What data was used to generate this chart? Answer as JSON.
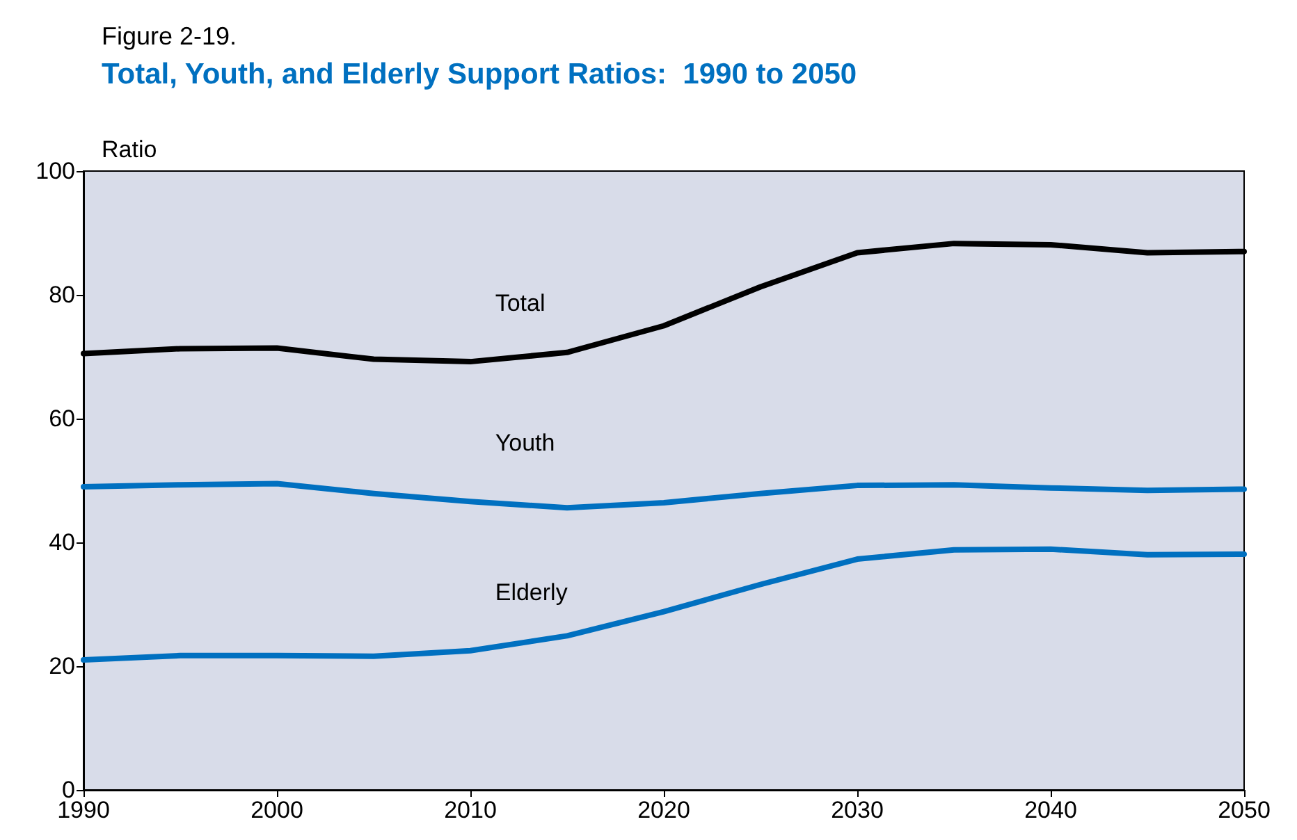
{
  "chart_data": {
    "type": "line",
    "title": "Figure 2-19.",
    "subtitle": "Total, Youth, and Elderly Support Ratios:  1990 to 2050",
    "ylabel": "Ratio",
    "x": [
      1990,
      1995,
      2000,
      2005,
      2010,
      2015,
      2020,
      2025,
      2030,
      2035,
      2040,
      2045,
      2050
    ],
    "series": [
      {
        "name": "Total",
        "color": "#000000",
        "values": [
          70.5,
          71.3,
          71.4,
          69.6,
          69.2,
          70.7,
          75,
          81.3,
          86.8,
          88.3,
          88.1,
          86.8,
          87
        ]
      },
      {
        "name": "Youth",
        "color": "#0070c0",
        "values": [
          49,
          49.3,
          49.5,
          47.9,
          46.6,
          45.6,
          46.4,
          47.9,
          49.2,
          49.3,
          48.8,
          48.4,
          48.6
        ]
      },
      {
        "name": "Elderly",
        "color": "#0070c0",
        "values": [
          21,
          21.7,
          21.7,
          21.6,
          22.5,
          24.9,
          28.8,
          33.2,
          37.3,
          38.8,
          38.9,
          38,
          38.1
        ]
      }
    ],
    "xlim": [
      1990,
      2050
    ],
    "xticks": [
      1990,
      2000,
      2010,
      2020,
      2030,
      2040,
      2050
    ],
    "ylim": [
      0,
      100
    ],
    "yticks": [
      0,
      20,
      40,
      60,
      80,
      100
    ],
    "grid": false,
    "legend": false,
    "marker": "none",
    "line_style": "solid"
  }
}
